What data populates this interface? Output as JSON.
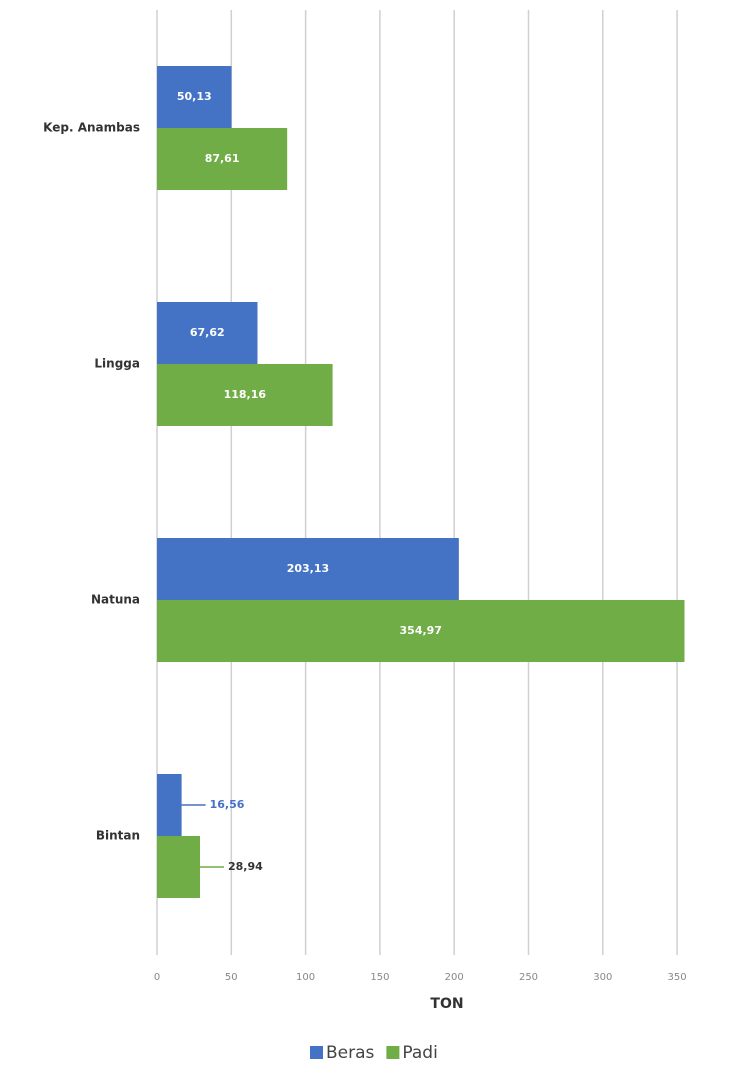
{
  "chart_data": {
    "type": "bar",
    "orientation": "horizontal",
    "categories": [
      "Kep. Anambas",
      "Lingga",
      "Natuna",
      "Bintan"
    ],
    "series": [
      {
        "name": "Beras",
        "color": "#4472c4",
        "values": [
          50.13,
          67.62,
          203.13,
          16.56
        ],
        "value_labels": [
          "50,13",
          "67,62",
          "203,13",
          "16,56"
        ]
      },
      {
        "name": "Padi",
        "color": "#70ad47",
        "values": [
          87.61,
          118.16,
          354.97,
          28.94
        ],
        "value_labels": [
          "87,61",
          "118,16",
          "354,97",
          "28,94"
        ]
      }
    ],
    "xlabel": "TON",
    "xlim": [
      0,
      360
    ],
    "xticks": [
      0,
      50,
      100,
      150,
      200,
      250,
      300,
      350
    ],
    "grid": true,
    "legend": "bottom"
  }
}
